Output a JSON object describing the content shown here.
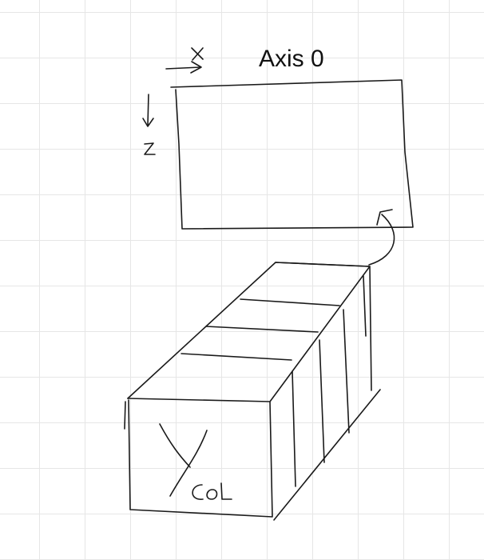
{
  "diagram": {
    "title": "Axis 0",
    "ink_color": "#1a1a1a",
    "grid_color": "#e6e6e6",
    "handwritten_labels": {
      "x_axis": "X",
      "z_axis": "Z",
      "y_label": "Y",
      "col_label": "CoL"
    },
    "icons": [
      "x-arrow-icon",
      "z-arrow-icon",
      "curved-arrow-icon"
    ]
  }
}
